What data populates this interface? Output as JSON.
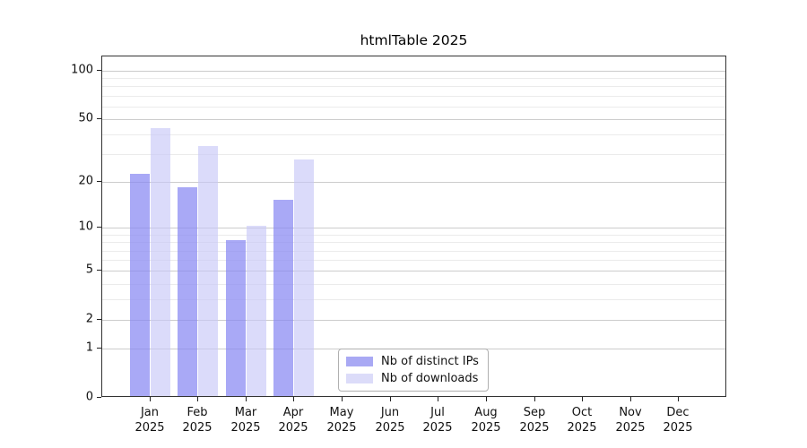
{
  "title": "htmlTable 2025",
  "chart_data": {
    "type": "bar",
    "title": "htmlTable 2025",
    "scale": "mirror-log (log10(1+x)) y axis",
    "categories": [
      "Jan 2025",
      "Feb 2025",
      "Mar 2025",
      "Apr 2025",
      "May 2025",
      "Jun 2025",
      "Jul 2025",
      "Aug 2025",
      "Sep 2025",
      "Oct 2025",
      "Nov 2025",
      "Dec 2025"
    ],
    "series": [
      {
        "name": "Nb of distinct IPs",
        "key": "distinct-ips",
        "fill": "rgba(136,136,242,0.72)",
        "legend_hex": "#a9a9f4",
        "values": [
          22,
          18,
          8,
          15,
          null,
          null,
          null,
          null,
          null,
          null,
          null,
          null
        ]
      },
      {
        "name": "Nb of downloads",
        "key": "downloads",
        "fill": "rgba(200,200,247,0.65)",
        "legend_hex": "#dcdcf9",
        "values": [
          43,
          33,
          10,
          27,
          null,
          null,
          null,
          null,
          null,
          null,
          null,
          null
        ]
      }
    ],
    "y_ticks": [
      0,
      1,
      2,
      5,
      10,
      20,
      50,
      100
    ],
    "y_minor_ticks": [
      3,
      4,
      6,
      7,
      8,
      9,
      30,
      40,
      60,
      70,
      80,
      90
    ],
    "ylim": [
      0,
      100
    ],
    "xlabel": "",
    "ylabel": "",
    "grid": true,
    "legend_position": "inside-bottom-center",
    "colors": {
      "major_grid": "#cccccc",
      "minor_grid": "#ebebeb",
      "axis": "#333333",
      "text": "#1a1a1a"
    }
  }
}
